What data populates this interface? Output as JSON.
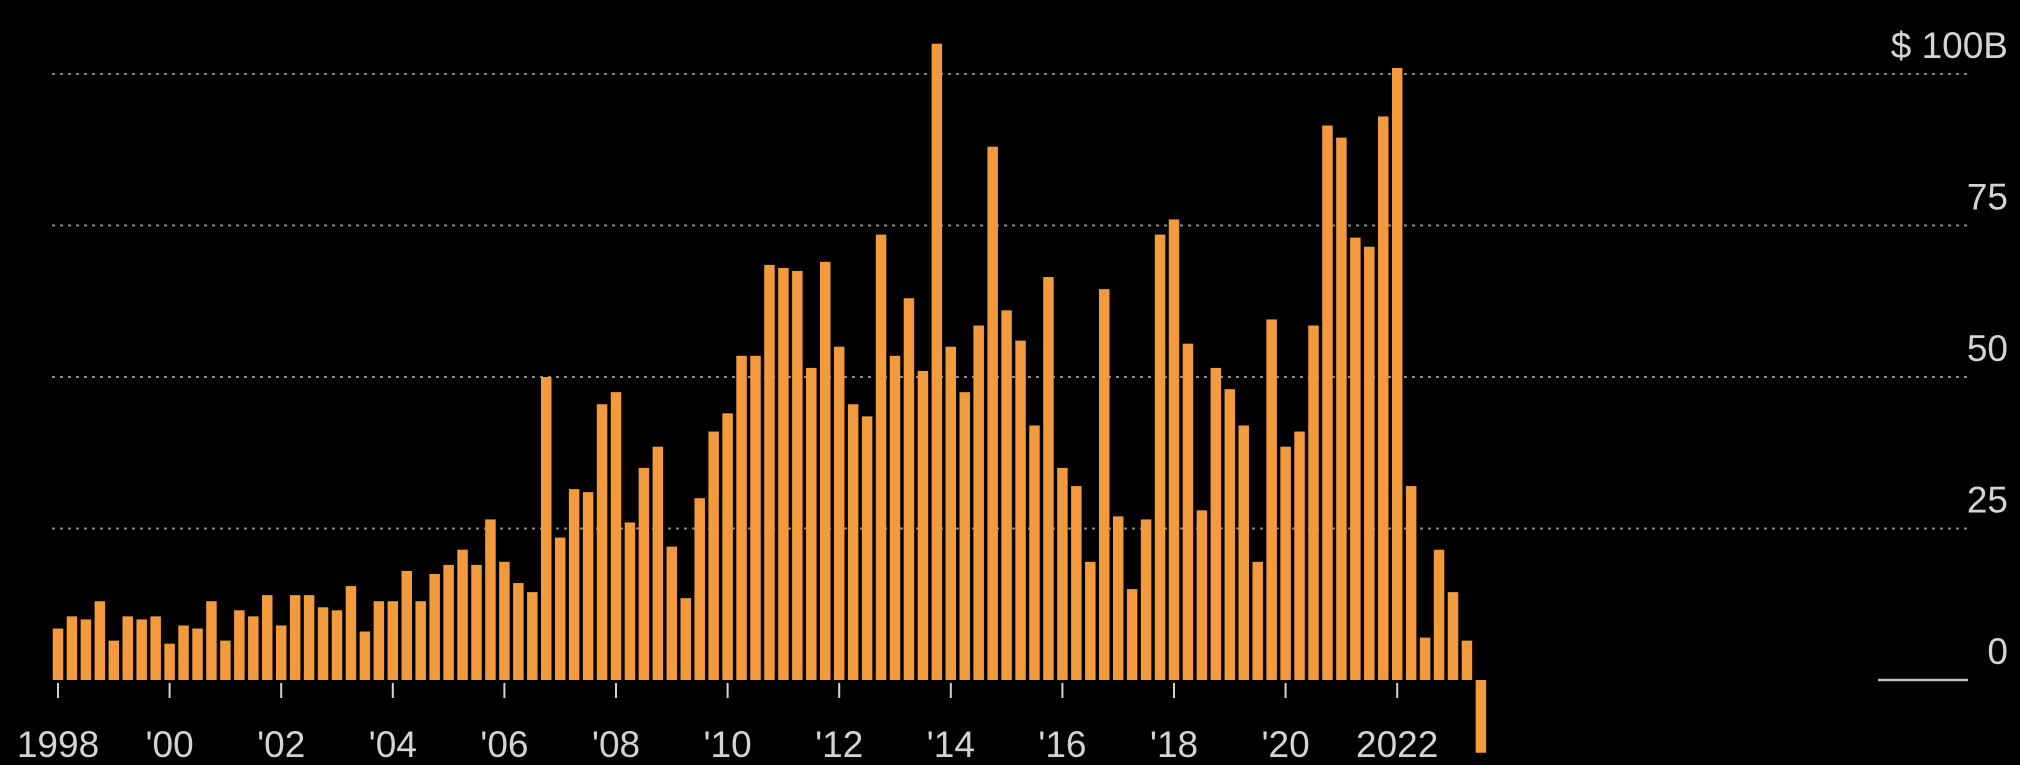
{
  "chart_data": {
    "type": "bar",
    "title": "",
    "xlabel": "",
    "ylabel": "",
    "ylim": [
      -12,
      108
    ],
    "grid": true,
    "bar_color": "#f39a3c",
    "background_color": "#000000",
    "grid_color": "#8a8a8a",
    "x_start": 1998,
    "periods_per_year": 4,
    "x_ticks": [
      {
        "x": 1998,
        "label": "1998"
      },
      {
        "x": 2000,
        "label": "'00"
      },
      {
        "x": 2002,
        "label": "'02"
      },
      {
        "x": 2004,
        "label": "'04"
      },
      {
        "x": 2006,
        "label": "'06"
      },
      {
        "x": 2008,
        "label": "'08"
      },
      {
        "x": 2010,
        "label": "'10"
      },
      {
        "x": 2012,
        "label": "'12"
      },
      {
        "x": 2014,
        "label": "'14"
      },
      {
        "x": 2016,
        "label": "'16"
      },
      {
        "x": 2018,
        "label": "'18"
      },
      {
        "x": 2020,
        "label": "'20"
      },
      {
        "x": 2022,
        "label": "2022"
      }
    ],
    "y_ticks": [
      {
        "value": 100,
        "label": "$ 100B"
      },
      {
        "value": 75,
        "label": "75"
      },
      {
        "value": 50,
        "label": "50"
      },
      {
        "value": 25,
        "label": "25"
      },
      {
        "value": 0,
        "label": "0"
      }
    ],
    "values": [
      8.5,
      10.5,
      10,
      13,
      6.5,
      10.5,
      10,
      10.5,
      6,
      9,
      8.5,
      13,
      6.5,
      11.5,
      10.5,
      14,
      9,
      14,
      14,
      12,
      11.5,
      15.5,
      8,
      13,
      13,
      18,
      13,
      17.5,
      19,
      21.5,
      19,
      26.5,
      19.5,
      16,
      14.5,
      50,
      23.5,
      31.5,
      31,
      45.5,
      47.5,
      26,
      35,
      38.5,
      22,
      13.5,
      30,
      41,
      44,
      53.5,
      53.5,
      68.5,
      68,
      67.5,
      51.5,
      69,
      55,
      45.5,
      43.5,
      73.5,
      53.5,
      63,
      51,
      105,
      55,
      47.5,
      58.5,
      88,
      61,
      56,
      42,
      66.5,
      35,
      32,
      19.5,
      64.5,
      27,
      15,
      26.5,
      73.5,
      76,
      55.5,
      28,
      51.5,
      48,
      42,
      19.5,
      59.5,
      38.5,
      41,
      58.5,
      91.5,
      89.5,
      73,
      71.5,
      93,
      101,
      32,
      7,
      21.5,
      14.5,
      6.5,
      -12
    ]
  }
}
